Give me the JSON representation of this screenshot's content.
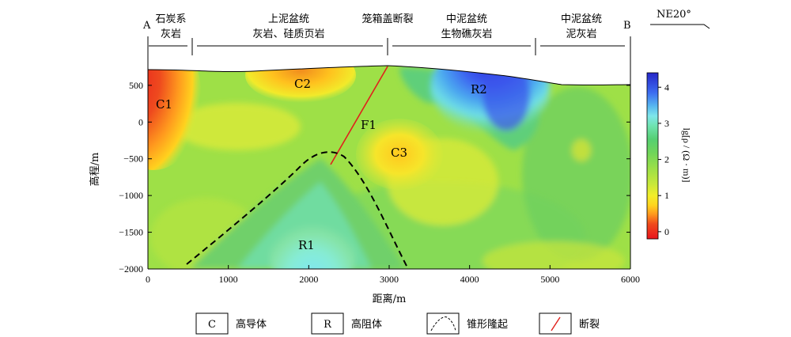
{
  "section": {
    "end_a": "A",
    "end_b": "B",
    "direction": "NE20°",
    "units": [
      {
        "line1": "石炭系",
        "line2": "灰岩"
      },
      {
        "line1": "上泥盆统",
        "line2": "灰岩、硅质页岩"
      },
      {
        "line1": "笼箱盖断裂",
        "line2": ""
      },
      {
        "line1": "中泥盆统",
        "line2": "生物礁灰岩"
      },
      {
        "line1": "中泥盆统",
        "line2": "泥灰岩"
      }
    ]
  },
  "axes": {
    "xlabel": "距离/m",
    "ylabel": "高程/m",
    "xticks": [
      "0",
      "1000",
      "2000",
      "3000",
      "4000",
      "5000",
      "6000"
    ],
    "xtick_values": [
      0,
      1000,
      2000,
      3000,
      4000,
      5000,
      6000
    ],
    "yticks": [
      "500",
      "0",
      "−500",
      "−1000",
      "−1500",
      "−2000"
    ],
    "ytick_values": [
      500,
      0,
      -500,
      -1000,
      -1500,
      -2000
    ],
    "xlim": [
      0,
      6000
    ],
    "ylim": [
      -2000,
      800
    ]
  },
  "colorbar": {
    "label": "lg[ρ / (Ω · m)]",
    "ticks": [
      "4",
      "3",
      "2",
      "1",
      "0"
    ],
    "tick_values": [
      4,
      3,
      2,
      1,
      0
    ],
    "range": [
      -0.2,
      4.4
    ],
    "colors": {
      "low": "#e41a1c",
      "mid_low": "#ffd21e",
      "mid": "#9ee047",
      "mid_high": "#5fcf6e",
      "high": "#2f2fd6"
    }
  },
  "anomalies": {
    "C1": "C1",
    "C2": "C2",
    "C3": "C3",
    "R1": "R1",
    "R2": "R2",
    "F1": "F1"
  },
  "legend": [
    {
      "key": "C",
      "label": "高导体"
    },
    {
      "key": "R",
      "label": "高阻体"
    },
    {
      "key": "",
      "label": "锥形隆起"
    },
    {
      "key": "",
      "label": "断裂"
    }
  ]
}
